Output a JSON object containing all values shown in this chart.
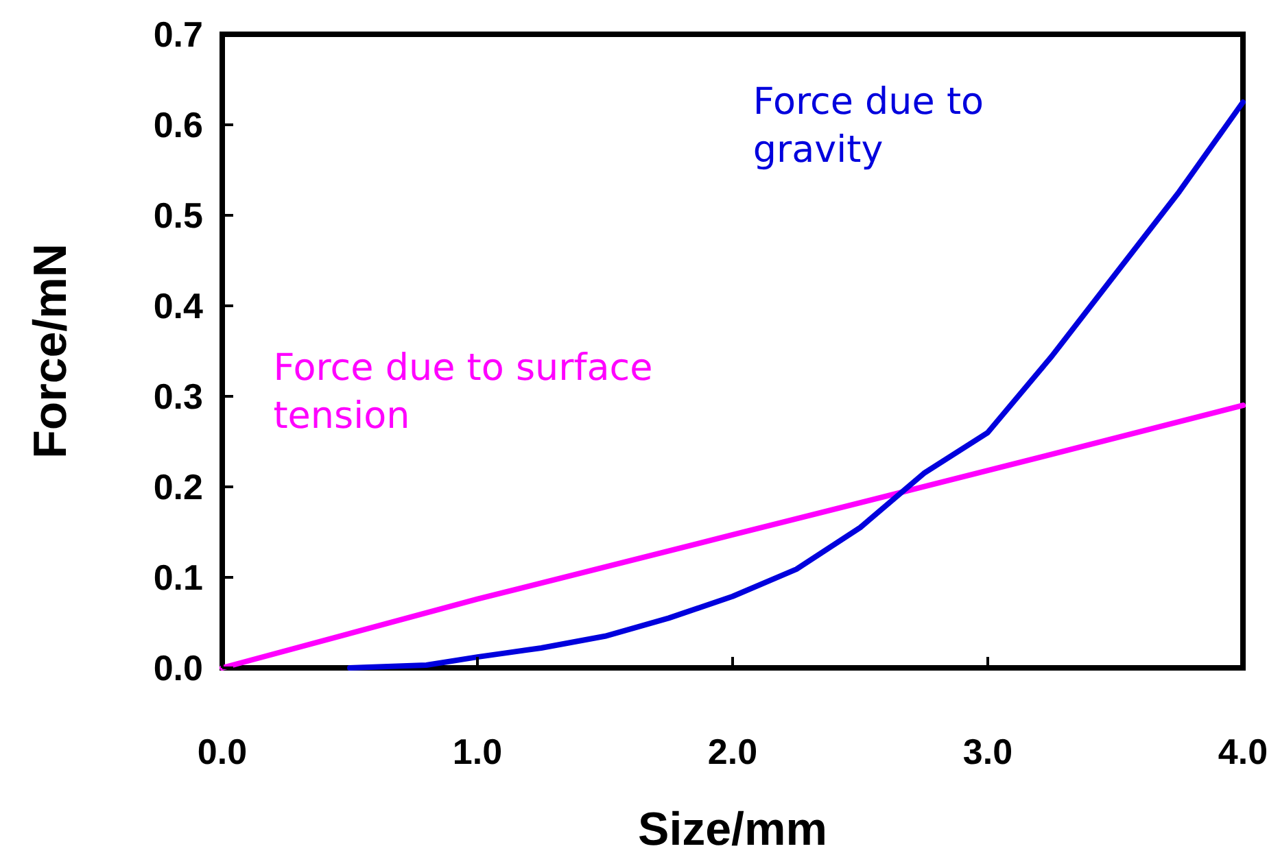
{
  "chart_data": {
    "type": "line",
    "xlabel": "Size/mm",
    "ylabel": "Force/mN",
    "xlim": [
      0,
      4
    ],
    "ylim": [
      0,
      0.7
    ],
    "xticks": [
      {
        "value": 0,
        "label": "0.0"
      },
      {
        "value": 1,
        "label": "1.0"
      },
      {
        "value": 2,
        "label": "2.0"
      },
      {
        "value": 3,
        "label": "3.0"
      },
      {
        "value": 4,
        "label": "4.0"
      }
    ],
    "yticks": [
      {
        "value": 0,
        "label": "0.0"
      },
      {
        "value": 0.1,
        "label": "0.1"
      },
      {
        "value": 0.2,
        "label": "0.2"
      },
      {
        "value": 0.3,
        "label": "0.3"
      },
      {
        "value": 0.4,
        "label": "0.4"
      },
      {
        "value": 0.5,
        "label": "0.5"
      },
      {
        "value": 0.6,
        "label": "0.6"
      },
      {
        "value": 0.7,
        "label": "0.7"
      }
    ],
    "grid": false,
    "marker": "none",
    "line_style": "solid",
    "series": [
      {
        "name": "Force due to surface tension",
        "color": "#ff00ff",
        "x": [
          0,
          1,
          2,
          3,
          4
        ],
        "values": [
          0,
          0.076,
          0.147,
          0.218,
          0.29
        ]
      },
      {
        "name": "Force due to gravity",
        "color": "#0000dd",
        "x": [
          0.5,
          0.8,
          1.0,
          1.1,
          1.25,
          1.5,
          1.75,
          2.0,
          2.25,
          2.5,
          2.75,
          3.0,
          3.25,
          3.5,
          3.75,
          4.0
        ],
        "values": [
          0,
          0.003,
          0.012,
          0.016,
          0.022,
          0.035,
          0.055,
          0.079,
          0.109,
          0.155,
          0.215,
          0.26,
          0.344,
          0.435,
          0.526,
          0.625
        ]
      }
    ]
  }
}
